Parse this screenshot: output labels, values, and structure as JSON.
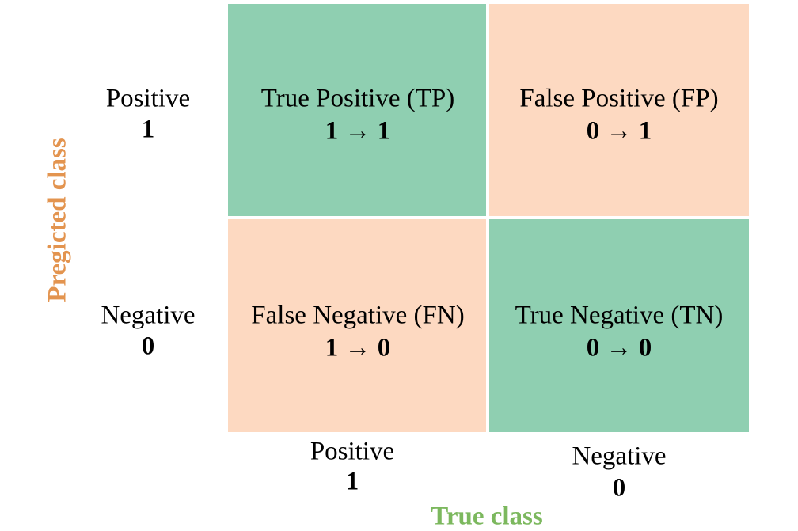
{
  "axes": {
    "y_title": "Pregicted class",
    "x_title": "True class"
  },
  "rows": [
    {
      "label": "Positive",
      "code": "1"
    },
    {
      "label": "Negative",
      "code": "0"
    }
  ],
  "columns": [
    {
      "label": "Positive",
      "code": "1"
    },
    {
      "label": "Negative",
      "code": "0"
    }
  ],
  "cells": [
    [
      {
        "name": "True Positive (TP)",
        "mapping": "1 → 1"
      },
      {
        "name": "False Positive (FP)",
        "mapping": "0 → 1"
      }
    ],
    [
      {
        "name": "False Negative (FN)",
        "mapping": "1 → 0"
      },
      {
        "name": "True Negative (TN)",
        "mapping": "0 → 0"
      }
    ]
  ]
}
